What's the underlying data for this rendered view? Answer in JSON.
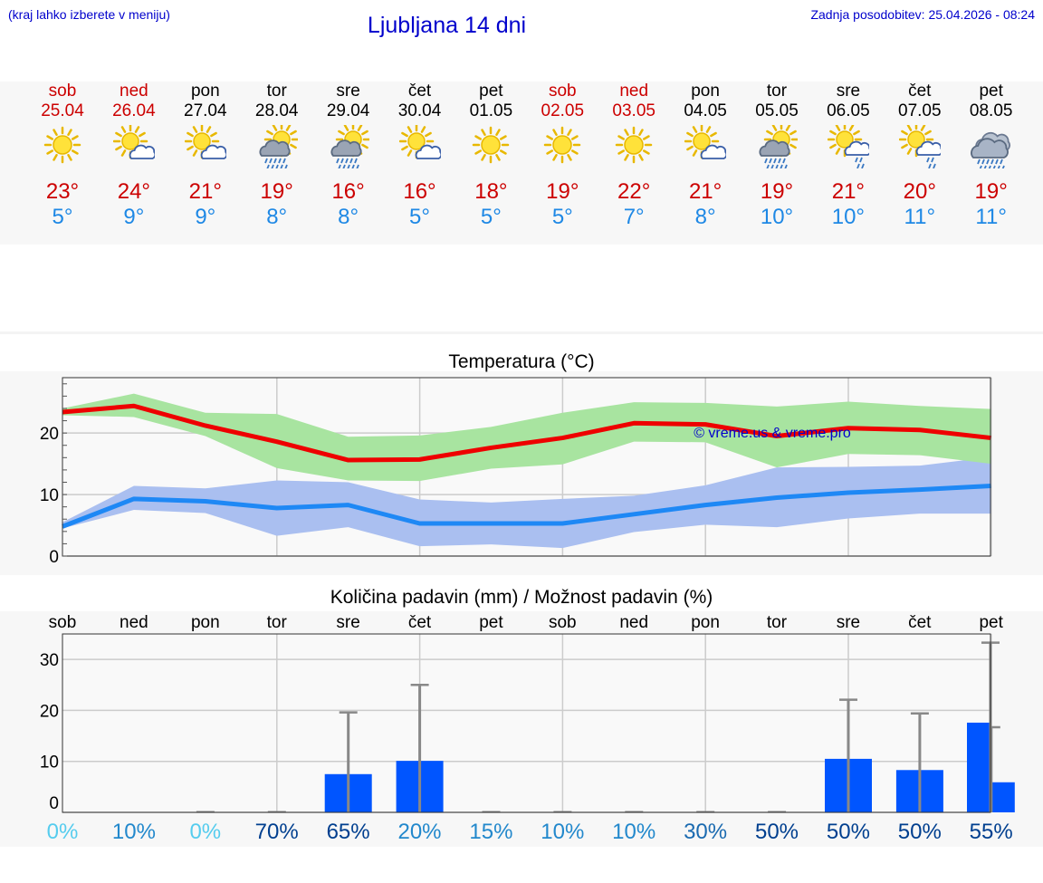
{
  "header": {
    "hint": "(kraj lahko izberete v meniju)",
    "title": "Ljubljana 14 dni",
    "updated": "Zadnja posodobitev: 25.04.2026 - 08:24"
  },
  "forecast": [
    {
      "day": "sob",
      "date": "25.04",
      "weekend": true,
      "icon": "sun-icon",
      "tmax": "23°",
      "tmin": "5°"
    },
    {
      "day": "ned",
      "date": "26.04",
      "weekend": true,
      "icon": "sun-cloud-icon",
      "tmax": "24°",
      "tmin": "9°"
    },
    {
      "day": "pon",
      "date": "27.04",
      "weekend": false,
      "icon": "sun-cloud-icon",
      "tmax": "21°",
      "tmin": "9°"
    },
    {
      "day": "tor",
      "date": "28.04",
      "weekend": false,
      "icon": "sun-cloud-rain-icon",
      "tmax": "19°",
      "tmin": "8°"
    },
    {
      "day": "sre",
      "date": "29.04",
      "weekend": false,
      "icon": "sun-cloud-rain-icon",
      "tmax": "16°",
      "tmin": "8°"
    },
    {
      "day": "čet",
      "date": "30.04",
      "weekend": false,
      "icon": "sun-cloud-icon",
      "tmax": "16°",
      "tmin": "5°"
    },
    {
      "day": "pet",
      "date": "01.05",
      "weekend": false,
      "icon": "sun-icon",
      "tmax": "18°",
      "tmin": "5°"
    },
    {
      "day": "sob",
      "date": "02.05",
      "weekend": true,
      "icon": "sun-icon",
      "tmax": "19°",
      "tmin": "5°"
    },
    {
      "day": "ned",
      "date": "03.05",
      "weekend": true,
      "icon": "sun-icon",
      "tmax": "22°",
      "tmin": "7°"
    },
    {
      "day": "pon",
      "date": "04.05",
      "weekend": false,
      "icon": "sun-cloud-icon",
      "tmax": "21°",
      "tmin": "8°"
    },
    {
      "day": "tor",
      "date": "05.05",
      "weekend": false,
      "icon": "sun-cloud-rain-icon",
      "tmax": "19°",
      "tmin": "10°"
    },
    {
      "day": "sre",
      "date": "06.05",
      "weekend": false,
      "icon": "sun-cloud-shower-icon",
      "tmax": "21°",
      "tmin": "10°"
    },
    {
      "day": "čet",
      "date": "07.05",
      "weekend": false,
      "icon": "sun-cloud-shower-icon",
      "tmax": "20°",
      "tmin": "11°"
    },
    {
      "day": "pet",
      "date": "08.05",
      "weekend": false,
      "icon": "cloud-rain-icon",
      "tmax": "19°",
      "tmin": "11°"
    }
  ],
  "colors": {
    "max_line": "#ee0000",
    "max_band": "#a8e4a0",
    "min_line": "#1e88f5",
    "min_band": "#aabff0",
    "bar": "#0055ff",
    "err": "#888888"
  },
  "chart_data": [
    {
      "type": "line",
      "title": "Temperatura (°C)",
      "watermark": "© vreme.us & vreme.pro",
      "x": [
        0,
        1,
        2,
        3,
        4,
        5,
        6,
        7,
        8,
        9,
        10,
        11,
        12,
        13
      ],
      "ylim": [
        0,
        29
      ],
      "yticks": [
        0,
        10,
        20
      ],
      "grid": true,
      "series": [
        {
          "name": "",
          "role": "max",
          "values": [
            23.4,
            24.4,
            21.2,
            18.6,
            15.6,
            15.7,
            17.6,
            19.2,
            21.6,
            21.4,
            19.5,
            20.8,
            20.5,
            19.2
          ]
        },
        {
          "name": "",
          "role": "max_low",
          "values": [
            22.9,
            22.6,
            19.5,
            14.3,
            12.3,
            12.2,
            14.2,
            14.9,
            18.6,
            18.5,
            14.4,
            16.6,
            16.4,
            15.0
          ]
        },
        {
          "name": "",
          "role": "max_high",
          "values": [
            24.0,
            26.4,
            23.3,
            23.1,
            19.4,
            19.6,
            21.0,
            23.3,
            25.0,
            24.9,
            24.3,
            25.1,
            24.4,
            23.9
          ]
        },
        {
          "name": "",
          "role": "min",
          "values": [
            4.8,
            9.3,
            8.9,
            7.8,
            8.3,
            5.3,
            5.3,
            5.3,
            6.8,
            8.3,
            9.5,
            10.3,
            10.8,
            11.4
          ]
        },
        {
          "name": "",
          "role": "min_low",
          "values": [
            4.5,
            7.5,
            7.0,
            3.3,
            4.7,
            1.6,
            1.9,
            1.3,
            3.9,
            5.1,
            4.7,
            6.1,
            6.9,
            6.9
          ]
        },
        {
          "name": "",
          "role": "min_high",
          "values": [
            5.5,
            11.4,
            11.0,
            12.3,
            12.0,
            9.2,
            8.7,
            9.3,
            9.8,
            11.5,
            14.4,
            14.5,
            14.7,
            16.1
          ]
        }
      ]
    },
    {
      "type": "bar",
      "title": "Količina padavin (mm) / Možnost padavin (%)",
      "categories": [
        "sob",
        "ned",
        "pon",
        "tor",
        "sre",
        "čet",
        "pet",
        "sob",
        "ned",
        "pon",
        "tor",
        "sre",
        "čet",
        "pet"
      ],
      "values": [
        0,
        0,
        0,
        7.5,
        10.1,
        0,
        0,
        0,
        0,
        0,
        10.5,
        8.3,
        5.9,
        17.6
      ],
      "err_high": [
        0,
        0,
        0,
        19.6,
        25.0,
        0,
        0,
        0,
        0,
        0,
        22.1,
        19.4,
        16.7,
        33.3
      ],
      "chance": [
        "0%",
        "10%",
        "0%",
        "70%",
        "65%",
        "20%",
        "15%",
        "10%",
        "10%",
        "30%",
        "50%",
        "50%",
        "50%",
        "55%"
      ],
      "chance_colors": [
        "#55ccee",
        "#2288cc",
        "#55ccee",
        "#003f8f",
        "#003f8f",
        "#2288cc",
        "#2288cc",
        "#2288cc",
        "#2288cc",
        "#1a6ab0",
        "#003f8f",
        "#003f8f",
        "#003f8f",
        "#003f8f"
      ],
      "ylim": [
        0,
        35
      ],
      "yticks": [
        0,
        10,
        20,
        30
      ],
      "grid": true
    }
  ]
}
